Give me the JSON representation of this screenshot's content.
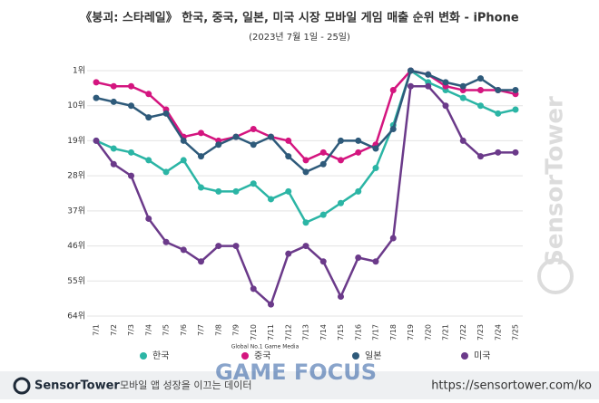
{
  "chart_data": {
    "type": "line",
    "title": "《붕괴: 스타레일》 한국, 중국, 일본, 미국 시장 모바일 게임 매출 순위 변화 - iPhone",
    "subtitle": "(2023년 7월 1일 - 25일)",
    "categories": [
      "7/1",
      "7/2",
      "7/3",
      "7/4",
      "7/5",
      "7/6",
      "7/7",
      "7/8",
      "7/9",
      "7/10",
      "7/11",
      "7/12",
      "7/13",
      "7/14",
      "7/15",
      "7/16",
      "7/17",
      "7/18",
      "7/19",
      "7/20",
      "7/21",
      "7/22",
      "7/23",
      "7/24",
      "7/25"
    ],
    "series": [
      {
        "name": "한국",
        "color": "#2bb5a5",
        "values": [
          19,
          21,
          22,
          24,
          27,
          24,
          31,
          32,
          32,
          30,
          34,
          32,
          40,
          38,
          35,
          32,
          26,
          15,
          1,
          4,
          6,
          8,
          10,
          12,
          11
        ]
      },
      {
        "name": "중국",
        "color": "#d4157f",
        "values": [
          4,
          5,
          5,
          7,
          11,
          18,
          17,
          19,
          18,
          16,
          18,
          19,
          24,
          22,
          24,
          22,
          20,
          6,
          1,
          2,
          5,
          6,
          6,
          6,
          7
        ]
      },
      {
        "name": "일본",
        "color": "#2e5a7a",
        "values": [
          8,
          9,
          10,
          13,
          12,
          19,
          23,
          20,
          18,
          20,
          18,
          23,
          27,
          25,
          19,
          19,
          21,
          16,
          1,
          2,
          4,
          5,
          3,
          6,
          6
        ]
      },
      {
        "name": "미국",
        "color": "#6b3a8a",
        "values": [
          19,
          25,
          28,
          39,
          45,
          47,
          50,
          46,
          46,
          57,
          61,
          48,
          46,
          50,
          59,
          49,
          50,
          44,
          5,
          5,
          10,
          19,
          23,
          22,
          22
        ]
      }
    ],
    "ylim": [
      1,
      64
    ],
    "y_reversed": true,
    "yticks": [
      {
        "value": 1,
        "label": "1위"
      },
      {
        "value": 10,
        "label": "10위"
      },
      {
        "value": 19,
        "label": "19위"
      },
      {
        "value": 28,
        "label": "28위"
      },
      {
        "value": 37,
        "label": "37위"
      },
      {
        "value": 46,
        "label": "46위"
      },
      {
        "value": 55,
        "label": "55위"
      },
      {
        "value": 64,
        "label": "64위"
      }
    ],
    "grid": true,
    "legend": "bottom"
  },
  "watermark": {
    "brand": "SensorTower",
    "media_tag": "Global No.1 Game Media",
    "media": "GAME FOCUS"
  },
  "footer": {
    "logo": "SensorTower",
    "tagline": "모바일 앱 성장을 이끄는 데이터",
    "url": "https://sensortower.com/ko"
  }
}
